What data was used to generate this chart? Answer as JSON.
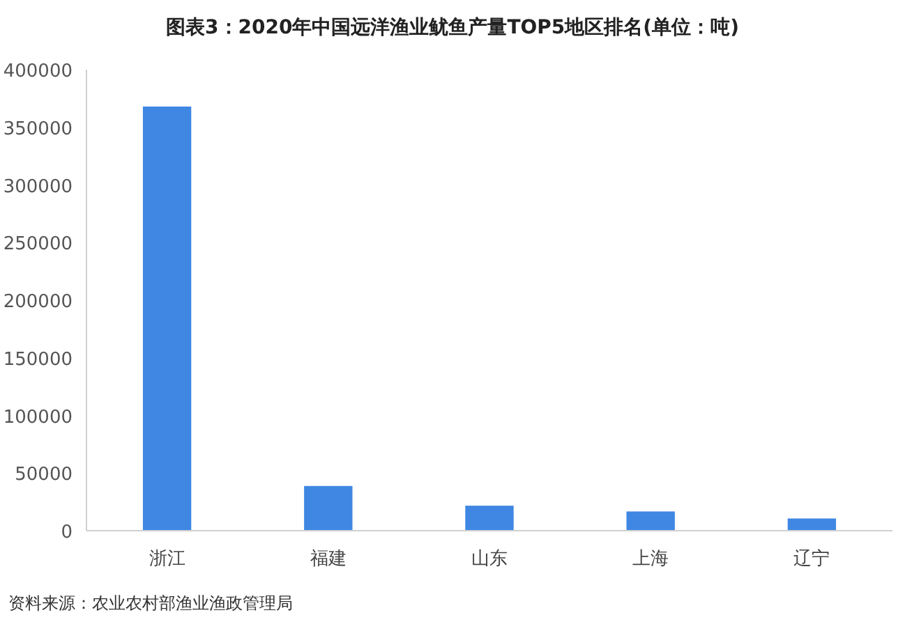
{
  "chart_data": {
    "type": "bar",
    "title": "图表3：2020年中国远洋渔业鱿鱼产量TOP5地区排名(单位：吨)",
    "categories": [
      "浙江",
      "福建",
      "山东",
      "上海",
      "辽宁"
    ],
    "values": [
      368000,
      38800,
      21700,
      16700,
      10600
    ],
    "color": "#3f87e3",
    "ylim": [
      0,
      400000
    ],
    "yticks": [
      0,
      50000,
      100000,
      150000,
      200000,
      250000,
      300000,
      350000,
      400000
    ],
    "grid": false,
    "annotations": [
      "资料来源：农业农村部渔业渔政管理局"
    ]
  }
}
